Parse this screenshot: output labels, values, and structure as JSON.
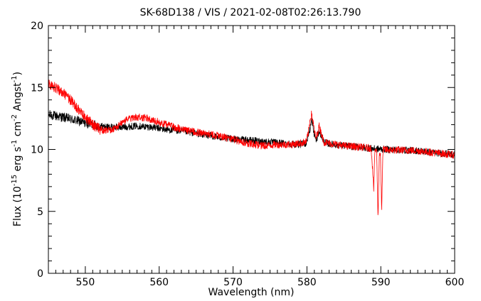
{
  "chart_data": {
    "type": "line",
    "title": "SK-68D138 / VIS / 2021-02-08T02:26:13.790",
    "xlabel": "Wavelength (nm)",
    "ylabel": {
      "prefix": "Flux (10",
      "exp1": "-15",
      "mid1": " erg s",
      "exp2": "-1",
      "mid2": " cm",
      "exp3": "-2",
      "mid3": " Angst",
      "exp4": "-1",
      "suffix": ")"
    },
    "xlim": [
      545,
      600
    ],
    "ylim": [
      0,
      20
    ],
    "x_ticks": [
      {
        "value": 550,
        "label": "550"
      },
      {
        "value": 560,
        "label": "560"
      },
      {
        "value": 570,
        "label": "570"
      },
      {
        "value": 580,
        "label": "580"
      },
      {
        "value": 590,
        "label": "590"
      },
      {
        "value": 600,
        "label": "600"
      }
    ],
    "y_ticks": [
      {
        "value": 0,
        "label": "0"
      },
      {
        "value": 5,
        "label": "5"
      },
      {
        "value": 10,
        "label": "10"
      },
      {
        "value": 15,
        "label": "15"
      },
      {
        "value": 20,
        "label": "20"
      }
    ],
    "x_minor_step": 1,
    "y_minor_step": 1,
    "grid": false,
    "series": [
      {
        "color": "#000000",
        "noise": 0.28,
        "points": [
          [
            545,
            12.8
          ],
          [
            547,
            12.6
          ],
          [
            549,
            12.3
          ],
          [
            551,
            12.0
          ],
          [
            553,
            11.8
          ],
          [
            555,
            11.8
          ],
          [
            557,
            11.9
          ],
          [
            559,
            11.8
          ],
          [
            561,
            11.6
          ],
          [
            563,
            11.5
          ],
          [
            565,
            11.3
          ],
          [
            567,
            11.1
          ],
          [
            569,
            10.9
          ],
          [
            571,
            10.8
          ],
          [
            573,
            10.7
          ],
          [
            575,
            10.6
          ],
          [
            577,
            10.5
          ],
          [
            578,
            10.45
          ],
          [
            579,
            10.4
          ],
          [
            579.9,
            10.5
          ],
          [
            580.4,
            11.6
          ],
          [
            580.65,
            12.4
          ],
          [
            580.9,
            11.4
          ],
          [
            581.3,
            10.7
          ],
          [
            581.65,
            11.5
          ],
          [
            581.9,
            11.2
          ],
          [
            582.3,
            10.6
          ],
          [
            583,
            10.45
          ],
          [
            585,
            10.3
          ],
          [
            587,
            10.2
          ],
          [
            589,
            10.05
          ],
          [
            591,
            10.0
          ],
          [
            593,
            9.95
          ],
          [
            595,
            9.9
          ],
          [
            597,
            9.75
          ],
          [
            600,
            9.6
          ]
        ]
      },
      {
        "color": "#ff0000",
        "noise": 0.3,
        "points": [
          [
            545,
            15.3
          ],
          [
            546,
            15.0
          ],
          [
            547,
            14.6
          ],
          [
            548,
            14.0
          ],
          [
            549,
            13.3
          ],
          [
            550,
            12.6
          ],
          [
            551,
            12.0
          ],
          [
            552,
            11.6
          ],
          [
            553,
            11.5
          ],
          [
            554,
            11.7
          ],
          [
            555,
            12.2
          ],
          [
            556,
            12.5
          ],
          [
            557,
            12.6
          ],
          [
            558,
            12.55
          ],
          [
            559,
            12.4
          ],
          [
            560,
            12.2
          ],
          [
            561,
            12.0
          ],
          [
            562,
            11.8
          ],
          [
            564,
            11.5
          ],
          [
            566,
            11.3
          ],
          [
            568,
            11.1
          ],
          [
            570,
            10.8
          ],
          [
            572,
            10.5
          ],
          [
            573,
            10.4
          ],
          [
            574,
            10.3
          ],
          [
            575,
            10.35
          ],
          [
            576,
            10.4
          ],
          [
            577,
            10.4
          ],
          [
            578,
            10.4
          ],
          [
            579,
            10.5
          ],
          [
            579.9,
            10.6
          ],
          [
            580.2,
            11.4
          ],
          [
            580.45,
            12.5
          ],
          [
            580.65,
            12.9
          ],
          [
            580.9,
            11.9
          ],
          [
            581.2,
            10.9
          ],
          [
            581.45,
            11.3
          ],
          [
            581.65,
            11.9
          ],
          [
            581.9,
            11.4
          ],
          [
            582.3,
            10.6
          ],
          [
            583,
            10.5
          ],
          [
            585,
            10.3
          ],
          [
            587,
            10.2
          ],
          [
            588.7,
            10.1
          ],
          [
            588.9,
            8.4
          ],
          [
            589.05,
            6.7
          ],
          [
            589.2,
            10.0
          ],
          [
            589.45,
            9.8
          ],
          [
            589.62,
            4.5
          ],
          [
            589.8,
            9.6
          ],
          [
            589.95,
            9.8
          ],
          [
            590.12,
            5.0
          ],
          [
            590.3,
            10.0
          ],
          [
            591,
            9.95
          ],
          [
            593,
            9.95
          ],
          [
            595,
            9.9
          ],
          [
            597,
            9.75
          ],
          [
            600,
            9.55
          ]
        ]
      }
    ]
  }
}
